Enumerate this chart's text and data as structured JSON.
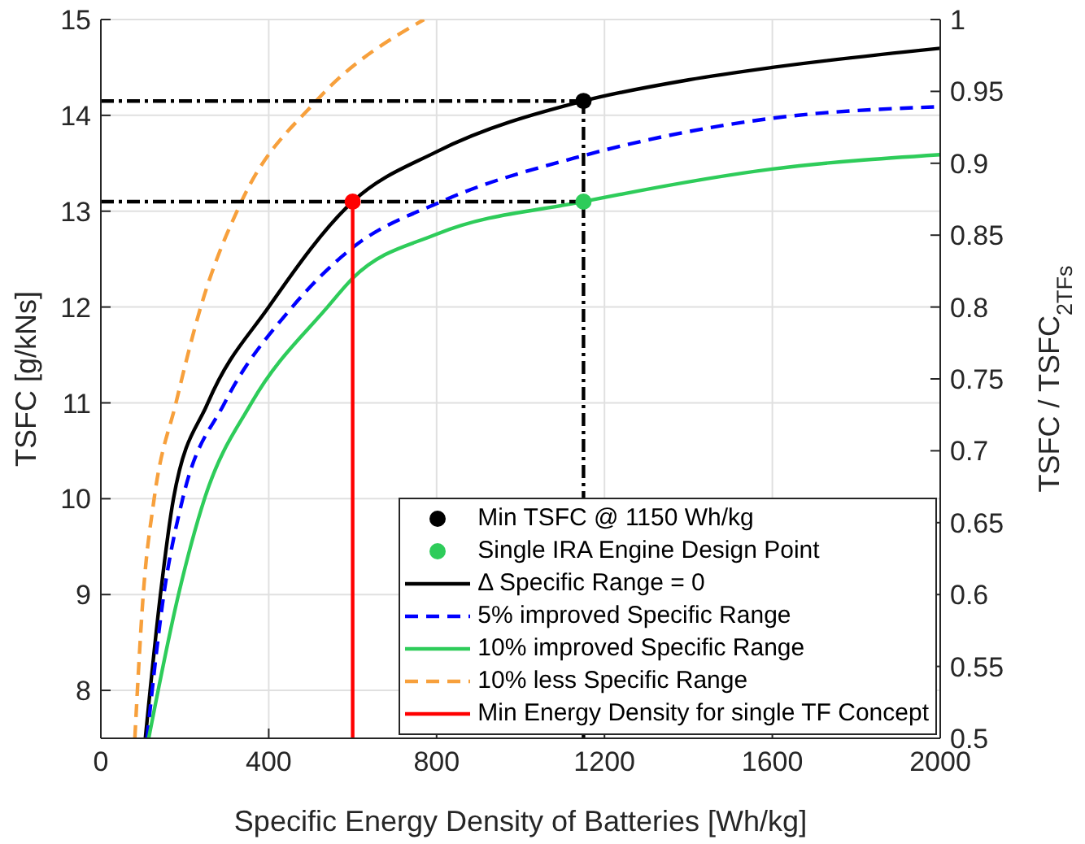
{
  "chart_data": {
    "type": "line",
    "xlabel": "Specific Energy Density of Batteries [Wh/kg]",
    "ylabel": "TSFC [g/kNs]",
    "y2label": "TSFC / TSFC$_{2TFs}$",
    "xlim": [
      0,
      2000
    ],
    "xticks": [
      0,
      400,
      800,
      1200,
      1600,
      2000
    ],
    "ylim": [
      7.5,
      15
    ],
    "yticks": [
      8,
      9,
      10,
      11,
      12,
      13,
      14,
      15
    ],
    "y2lim": [
      0.5,
      1
    ],
    "y2ticks": [
      0.5,
      0.55,
      0.6,
      0.65,
      0.7,
      0.75,
      0.8,
      0.85,
      0.9,
      0.95,
      1
    ],
    "grid": true,
    "legend": "bottom right",
    "series": [
      {
        "type": "scatter",
        "name": "Min TSFC @ 1150 Wh/kg",
        "color": "#000000",
        "marker": "circle",
        "x": [
          1150
        ],
        "values": [
          14.15
        ]
      },
      {
        "type": "scatter",
        "name": "Single IRA Engine Design Point",
        "color": "#2ecc5a",
        "marker": "circle",
        "x": [
          1150
        ],
        "values": [
          13.1
        ]
      },
      {
        "name": "Δ Specific Range = 0",
        "color": "#000000",
        "line_style": "solid",
        "x": [
          106,
          142,
          173,
          255,
          400,
          600,
          800,
          1150,
          1400,
          1600,
          2000
        ],
        "values": [
          7.5,
          9,
          10,
          11,
          12,
          13.1,
          13.62,
          14.15,
          14.37,
          14.5,
          14.7
        ]
      },
      {
        "name": "5% improved Specific Range",
        "color": "#0000ff",
        "line_style": "dashed",
        "x": [
          110,
          150,
          195,
          295,
          456,
          600,
          811,
          1150,
          1600,
          2000
        ],
        "values": [
          7.5,
          9,
          10,
          11,
          12,
          12.62,
          13.1,
          13.58,
          13.97,
          14.09
        ]
      },
      {
        "name": "10% improved Specific Range",
        "color": "#2ecc5a",
        "line_style": "solid",
        "x": [
          114,
          185,
          247,
          359,
          540,
          600,
          800,
          1150,
          1600,
          2000
        ],
        "values": [
          7.5,
          9,
          10,
          11,
          12,
          12.3,
          12.76,
          13.1,
          13.44,
          13.59
        ]
      },
      {
        "name": "10% less Specific Range",
        "color": "#f7a03c",
        "line_style": "dashed",
        "x": [
          81,
          101,
          127,
          179,
          238,
          335,
          513,
          770
        ],
        "values": [
          7.5,
          9,
          10,
          11,
          12,
          13.1,
          14.15,
          15
        ]
      },
      {
        "name": "Min Energy Density for single TF Concept",
        "color": "#ff0000",
        "line_style": "solid",
        "x": [
          600,
          600
        ],
        "values": [
          7.5,
          13.1
        ]
      },
      {
        "type": "scatter",
        "color": "#ff0000",
        "marker": "circle",
        "x": [
          600
        ],
        "values": [
          13.1
        ]
      },
      {
        "type": "line",
        "color": "#000000",
        "line_style": "dashdot",
        "x": [
          0,
          1150
        ],
        "values": [
          14.15,
          14.15
        ]
      },
      {
        "type": "line",
        "color": "#000000",
        "line_style": "dashdot",
        "x": [
          0,
          1150
        ],
        "values": [
          13.1,
          13.1
        ]
      },
      {
        "type": "line",
        "color": "#000000",
        "line_style": "dashdot",
        "x": [
          1150,
          1150
        ],
        "values": [
          7.5,
          14.15
        ]
      }
    ]
  }
}
